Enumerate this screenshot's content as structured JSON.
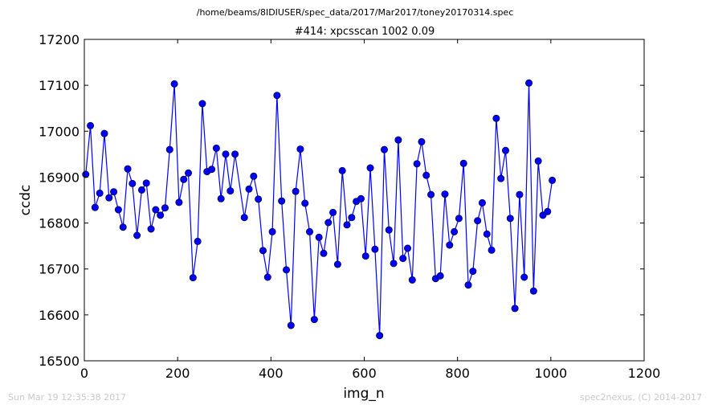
{
  "chart_data": {
    "type": "line",
    "suptitle": "/home/beams/8IDIUSER/spec_data/2017/Mar2017/toney20170314.spec",
    "title": "#414: xpcsscan 1002 0.09",
    "xlabel": "img_n",
    "ylabel": "ccdc",
    "xlim": [
      0,
      1200
    ],
    "ylim": [
      16500,
      17200
    ],
    "xticks": [
      "0",
      "200",
      "400",
      "600",
      "800",
      "1000",
      "1200"
    ],
    "yticks": [
      "16500",
      "16600",
      "16700",
      "16800",
      "16900",
      "17000",
      "17100",
      "17200"
    ],
    "grid": false,
    "legend": "none",
    "series": [
      {
        "color": "#0000ff",
        "marker": "circle",
        "x": [
          3,
          13,
          23,
          33,
          43,
          53,
          63,
          73,
          83,
          93,
          103,
          113,
          123,
          133,
          143,
          153,
          163,
          173,
          183,
          193,
          203,
          213,
          223,
          233,
          243,
          253,
          263,
          273,
          283,
          293,
          303,
          313,
          323,
          343,
          353,
          363,
          373,
          383,
          393,
          403,
          413,
          423,
          433,
          443,
          453,
          463,
          473,
          483,
          493,
          503,
          513,
          523,
          533,
          543,
          553,
          563,
          573,
          583,
          593,
          603,
          613,
          623,
          633,
          643,
          653,
          663,
          673,
          683,
          693,
          703,
          713,
          723,
          733,
          743,
          753,
          763,
          773,
          783,
          793,
          803,
          813,
          823,
          833,
          843,
          853,
          863,
          873,
          883,
          893,
          903,
          913,
          923,
          933,
          943,
          953,
          963,
          973,
          983,
          993,
          1003
        ],
        "y": [
          16906,
          17012,
          16834,
          16865,
          16995,
          16855,
          16868,
          16829,
          16791,
          16918,
          16886,
          16773,
          16872,
          16887,
          16787,
          16829,
          16817,
          16833,
          16960,
          17103,
          16845,
          16895,
          16909,
          16681,
          16760,
          17060,
          16912,
          16917,
          16963,
          16853,
          16950,
          16870,
          16950,
          16812,
          16874,
          16902,
          16852,
          16740,
          16682,
          16781,
          17078,
          16848,
          16698,
          16577,
          16869,
          16961,
          16843,
          16781,
          16590,
          16769,
          16734,
          16801,
          16823,
          16710,
          16914,
          16796,
          16812,
          16847,
          16853,
          16728,
          16920,
          16743,
          16555,
          16960,
          16785,
          16712,
          16981,
          16723,
          16745,
          16676,
          16929,
          16977,
          16904,
          16862,
          16679,
          16685,
          16863,
          16752,
          16781,
          16810,
          16930,
          16665,
          16695,
          16805,
          16844,
          16776,
          16741,
          17028,
          16897,
          16958,
          16810,
          16614,
          16862,
          16682,
          17105,
          16652,
          16935,
          16817,
          16825,
          16893
        ]
      }
    ]
  },
  "footer": {
    "timestamp": "Sun Mar 19 12:35:38 2017",
    "credit": "spec2nexus, (C) 2014-2017"
  }
}
